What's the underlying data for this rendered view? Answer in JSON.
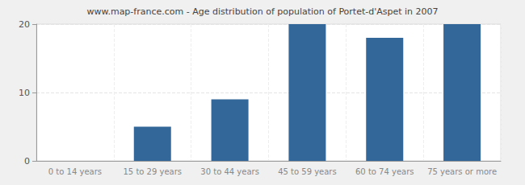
{
  "chart_data": {
    "type": "bar",
    "title": "www.map-france.com - Age distribution of population of Portet-d'Aspet in 2007",
    "categories": [
      "0 to 14 years",
      "15 to 29 years",
      "30 to 44 years",
      "45 to 59 years",
      "60 to 74 years",
      "75 years or more"
    ],
    "values": [
      0,
      5,
      9,
      20,
      18,
      20
    ],
    "color": "#336699",
    "ylim": [
      0,
      20
    ],
    "yticks": [
      0,
      10,
      20
    ],
    "grid": true
  }
}
